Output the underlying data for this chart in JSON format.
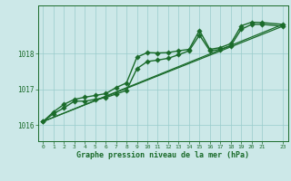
{
  "title": "Graphe pression niveau de la mer (hPa)",
  "background_color": "#cce8e8",
  "grid_color": "#99cccc",
  "line_color": "#1a6b2a",
  "xlim": [
    -0.5,
    23.5
  ],
  "ylim": [
    1015.55,
    1019.35
  ],
  "xticks": [
    0,
    1,
    2,
    3,
    4,
    5,
    6,
    7,
    8,
    9,
    10,
    11,
    12,
    13,
    14,
    15,
    16,
    17,
    18,
    19,
    20,
    21,
    23
  ],
  "yticks": [
    1016,
    1017,
    1018
  ],
  "series": [
    {
      "x": [
        0,
        1,
        2,
        3,
        4,
        5,
        6,
        7,
        8,
        9,
        10,
        11,
        12,
        13,
        14,
        15,
        16,
        17,
        18,
        19,
        20,
        21,
        23
      ],
      "y": [
        1016.1,
        1016.37,
        1016.58,
        1016.72,
        1016.78,
        1016.83,
        1016.88,
        1017.05,
        1017.18,
        1017.9,
        1018.03,
        1018.02,
        1018.03,
        1018.08,
        1018.12,
        1018.65,
        1018.12,
        1018.17,
        1018.28,
        1018.78,
        1018.88,
        1018.87,
        1018.82
      ],
      "marker": "D",
      "markersize": 2.8,
      "linewidth": 1.0
    },
    {
      "x": [
        0,
        1,
        2,
        3,
        4,
        5,
        6,
        7,
        8,
        9,
        10,
        11,
        12,
        13,
        14,
        15,
        16,
        17,
        18,
        19,
        20,
        21,
        23
      ],
      "y": [
        1016.1,
        1016.32,
        1016.48,
        1016.67,
        1016.67,
        1016.72,
        1016.77,
        1016.87,
        1016.97,
        1017.58,
        1017.78,
        1017.82,
        1017.87,
        1017.97,
        1018.08,
        1018.52,
        1018.08,
        1018.12,
        1018.22,
        1018.68,
        1018.82,
        1018.82,
        1018.77
      ],
      "marker": "D",
      "markersize": 2.8,
      "linewidth": 1.0
    },
    {
      "x": [
        0,
        23
      ],
      "y": [
        1016.1,
        1018.77
      ],
      "marker": null,
      "markersize": 0,
      "linewidth": 0.9
    },
    {
      "x": [
        0,
        23
      ],
      "y": [
        1016.1,
        1018.82
      ],
      "marker": null,
      "markersize": 0,
      "linewidth": 0.9
    }
  ]
}
